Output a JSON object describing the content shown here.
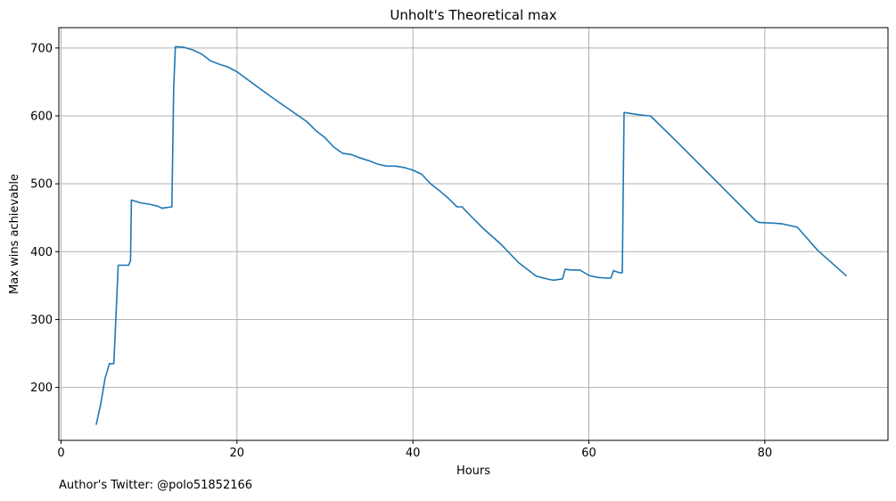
{
  "footer_text": "Author's Twitter: @polo51852166",
  "chart_data": {
    "type": "line",
    "title": "Unholt's Theoretical max",
    "xlabel": "Hours",
    "ylabel": "Max wins achievable",
    "xlim": [
      -0.25,
      94
    ],
    "ylim": [
      122,
      730
    ],
    "xticks": [
      0,
      20,
      40,
      60,
      80
    ],
    "yticks": [
      200,
      300,
      400,
      500,
      600,
      700
    ],
    "grid": true,
    "line_color": "#1f77b4",
    "series": [
      {
        "x": [
          4.0,
          4.5,
          5.0,
          5.5,
          6.0,
          6.5,
          7.0,
          7.7,
          7.9,
          8.0,
          9.0,
          10.0,
          11.0,
          11.5,
          12.0,
          12.6,
          12.8,
          13.0,
          14.0,
          15.0,
          16.0,
          17.0,
          18.0,
          19.0,
          20.0,
          22.0,
          24.0,
          26.0,
          28.0,
          29.0,
          30.0,
          31.0,
          32.0,
          33.0,
          34.0,
          35.0,
          36.0,
          37.0,
          38.0,
          39.0,
          40.0,
          41.0,
          42.0,
          43.0,
          44.0,
          45.0,
          45.6,
          46.0,
          48.0,
          50.0,
          52.0,
          54.0,
          55.5,
          56.0,
          57.0,
          57.3,
          58.0,
          59.0,
          60.0,
          61.0,
          62.0,
          62.5,
          62.8,
          63.0,
          63.5,
          63.8,
          64.0,
          65.0,
          66.0,
          67.0,
          70.0,
          73.0,
          76.0,
          79.0,
          79.4,
          81.0,
          82.0,
          83.0,
          83.7,
          86.0,
          89.3
        ],
        "y": [
          145,
          175,
          213,
          235,
          235,
          380,
          380,
          380,
          387,
          476,
          472,
          470,
          467,
          464,
          465,
          466,
          640,
          702,
          701,
          697,
          691,
          681,
          676,
          672,
          665,
          646,
          627,
          609,
          591,
          578,
          568,
          554,
          545,
          543,
          538,
          534,
          529,
          526,
          526,
          524,
          520,
          514,
          500,
          490,
          479,
          466,
          466,
          460,
          434,
          411,
          384,
          364,
          359,
          358,
          360,
          374,
          373,
          373,
          365,
          362,
          361,
          361,
          372,
          371,
          369,
          369,
          605,
          603,
          601,
          600,
          562,
          523,
          484,
          445,
          443,
          442,
          441,
          438,
          436,
          402,
          364
        ]
      }
    ]
  }
}
